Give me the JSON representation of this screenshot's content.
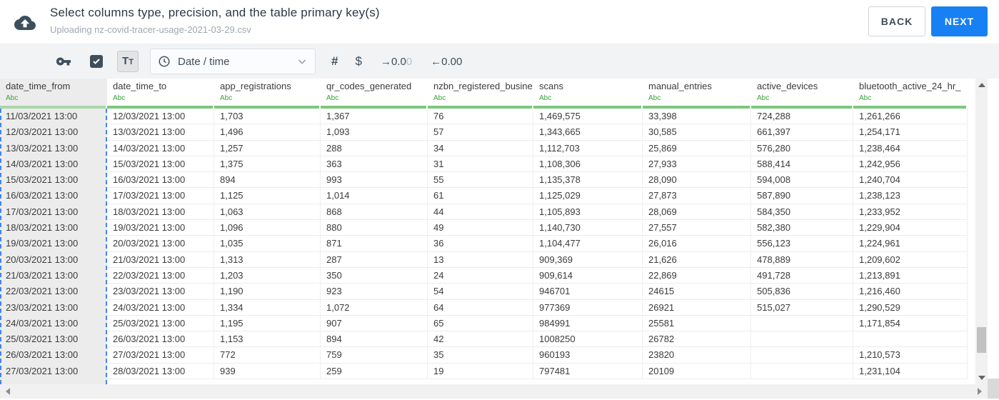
{
  "header": {
    "title": "Select columns type, precision, and the table primary key(s)",
    "subtitle": "Uploading nz-covid-tracer-usage-2021-03-29.csv",
    "back_label": "BACK",
    "next_label": "NEXT"
  },
  "toolbar": {
    "text_type_label_large": "T",
    "text_type_label_small": "T",
    "type_select_value": "Date / time",
    "number_label": "#",
    "currency_label": "$",
    "decimal_decrease_main": "→0.0",
    "decimal_decrease_faded": "0",
    "decimal_increase_label": "←0.00"
  },
  "table": {
    "columns": [
      {
        "name": "date_time_from",
        "type": "Abc",
        "selected": true
      },
      {
        "name": "date_time_to",
        "type": "Abc",
        "selected": false
      },
      {
        "name": "app_registrations",
        "type": "Abc",
        "selected": false
      },
      {
        "name": "qr_codes_generated",
        "type": "Abc",
        "selected": false
      },
      {
        "name": "nzbn_registered_busine",
        "type": "Abc",
        "selected": false
      },
      {
        "name": "scans",
        "type": "Abc",
        "selected": false
      },
      {
        "name": "manual_entries",
        "type": "Abc",
        "selected": false
      },
      {
        "name": "active_devices",
        "type": "Abc",
        "selected": false
      },
      {
        "name": "bluetooth_active_24_hr_",
        "type": "Abc",
        "selected": false
      }
    ],
    "rows": [
      [
        "11/03/2021 13:00",
        "12/03/2021 13:00",
        "1,703",
        "1,367",
        "76",
        "1,469,575",
        "33,398",
        "724,288",
        "1,261,266"
      ],
      [
        "12/03/2021 13:00",
        "13/03/2021 13:00",
        "1,496",
        "1,093",
        "57",
        "1,343,665",
        "30,585",
        "661,397",
        "1,254,171"
      ],
      [
        "13/03/2021 13:00",
        "14/03/2021 13:00",
        "1,257",
        "288",
        "34",
        "1,112,703",
        "25,869",
        "576,280",
        "1,238,464"
      ],
      [
        "14/03/2021 13:00",
        "15/03/2021 13:00",
        "1,375",
        "363",
        "31",
        "1,108,306",
        "27,933",
        "588,414",
        "1,242,956"
      ],
      [
        "15/03/2021 13:00",
        "16/03/2021 13:00",
        "894",
        "993",
        "55",
        "1,135,378",
        "28,090",
        "594,008",
        "1,240,704"
      ],
      [
        "16/03/2021 13:00",
        "17/03/2021 13:00",
        "1,125",
        "1,014",
        "61",
        "1,125,029",
        "27,873",
        "587,890",
        "1,238,123"
      ],
      [
        "17/03/2021 13:00",
        "18/03/2021 13:00",
        "1,063",
        "868",
        "44",
        "1,105,893",
        "28,069",
        "584,350",
        "1,233,952"
      ],
      [
        "18/03/2021 13:00",
        "19/03/2021 13:00",
        "1,096",
        "880",
        "49",
        "1,140,730",
        "27,557",
        "582,380",
        "1,229,904"
      ],
      [
        "19/03/2021 13:00",
        "20/03/2021 13:00",
        "1,035",
        "871",
        "36",
        "1,104,477",
        "26,016",
        "556,123",
        "1,224,961"
      ],
      [
        "20/03/2021 13:00",
        "21/03/2021 13:00",
        "1,313",
        "287",
        "13",
        "909,369",
        "21,626",
        "478,889",
        "1,209,602"
      ],
      [
        "21/03/2021 13:00",
        "22/03/2021 13:00",
        "1,203",
        "350",
        "24",
        "909,614",
        "22,869",
        "491,728",
        "1,213,891"
      ],
      [
        "22/03/2021 13:00",
        "23/03/2021 13:00",
        "1,190",
        "923",
        "54",
        "946701",
        "24615",
        "505,836",
        "1,216,460"
      ],
      [
        "23/03/2021 13:00",
        "24/03/2021 13:00",
        "1,334",
        "1,072",
        "64",
        "977369",
        "26921",
        "515,027",
        "1,290,529"
      ],
      [
        "24/03/2021 13:00",
        "25/03/2021 13:00",
        "1,195",
        "907",
        "65",
        "984991",
        "25581",
        "",
        "1,171,854"
      ],
      [
        "25/03/2021 13:00",
        "26/03/2021 13:00",
        "1,153",
        "894",
        "42",
        "1008250",
        "26782",
        "",
        ""
      ],
      [
        "26/03/2021 13:00",
        "27/03/2021 13:00",
        "772",
        "759",
        "35",
        "960193",
        "23820",
        "",
        "1,210,573"
      ],
      [
        "27/03/2021 13:00",
        "28/03/2021 13:00",
        "939",
        "259",
        "19",
        "797481",
        "20109",
        "",
        "1,231,104"
      ]
    ]
  },
  "colors": {
    "accent_blue": "#1781f3",
    "selection_dash_blue": "#4285f4",
    "type_green": "#3aa33a",
    "underline_green": "#7cc87c",
    "toolbar_icon": "#3d4f5d"
  }
}
